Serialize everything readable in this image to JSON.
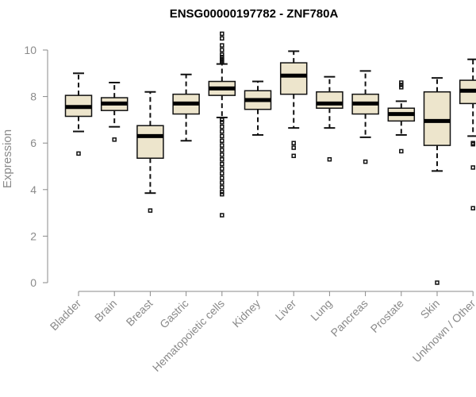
{
  "chart_data": {
    "type": "box",
    "title": "ENSG00000197782 - ZNF780A",
    "xlabel": "",
    "ylabel": "Expression",
    "ylim": [
      0,
      10
    ],
    "yticks": [
      0,
      2,
      4,
      6,
      8,
      10
    ],
    "grid": false,
    "categories": [
      "Bladder",
      "Brain",
      "Breast",
      "Gastric",
      "Hematopoietic cells",
      "Kidney",
      "Liver",
      "Lung",
      "Pancreas",
      "Prostate",
      "Skin",
      "Unknown / Other"
    ],
    "boxes": [
      {
        "name": "Bladder",
        "whislo": 6.5,
        "q1": 7.15,
        "med": 7.55,
        "q3": 8.05,
        "whishi": 9.0,
        "fliers": [
          5.55
        ]
      },
      {
        "name": "Brain",
        "whislo": 6.7,
        "q1": 7.4,
        "med": 7.7,
        "q3": 7.95,
        "whishi": 8.6,
        "fliers": [
          6.15
        ]
      },
      {
        "name": "Breast",
        "whislo": 3.85,
        "q1": 5.35,
        "med": 6.3,
        "q3": 6.75,
        "whishi": 8.2,
        "fliers": [
          3.1
        ]
      },
      {
        "name": "Gastric",
        "whislo": 6.1,
        "q1": 7.25,
        "med": 7.7,
        "q3": 8.1,
        "whishi": 8.95,
        "fliers": []
      },
      {
        "name": "Hematopoietic cells",
        "whislo": 7.1,
        "q1": 8.05,
        "med": 8.35,
        "q3": 8.65,
        "whishi": 9.4,
        "fliers": [
          10.7,
          10.5,
          10.2,
          10.0,
          9.8,
          9.7,
          9.6,
          9.55,
          9.5,
          7.0,
          6.9,
          6.7,
          6.5,
          6.3,
          6.1,
          5.9,
          5.7,
          5.5,
          5.3,
          5.1,
          4.9,
          4.7,
          4.5,
          4.3,
          4.1,
          3.9,
          3.8,
          2.9
        ]
      },
      {
        "name": "Kidney",
        "whislo": 6.35,
        "q1": 7.45,
        "med": 7.85,
        "q3": 8.25,
        "whishi": 8.65,
        "fliers": []
      },
      {
        "name": "Liver",
        "whislo": 6.65,
        "q1": 8.1,
        "med": 8.9,
        "q3": 9.45,
        "whishi": 9.95,
        "fliers": [
          6.0,
          5.8,
          5.45
        ]
      },
      {
        "name": "Lung",
        "whislo": 6.65,
        "q1": 7.5,
        "med": 7.7,
        "q3": 8.2,
        "whishi": 8.85,
        "fliers": [
          5.3
        ]
      },
      {
        "name": "Pancreas",
        "whislo": 6.25,
        "q1": 7.25,
        "med": 7.7,
        "q3": 8.1,
        "whishi": 9.1,
        "fliers": [
          5.2
        ]
      },
      {
        "name": "Prostate",
        "whislo": 6.35,
        "q1": 6.95,
        "med": 7.25,
        "q3": 7.5,
        "whishi": 7.8,
        "fliers": [
          8.6,
          8.5,
          8.4,
          5.65
        ]
      },
      {
        "name": "Skin",
        "whislo": 4.8,
        "q1": 5.9,
        "med": 6.95,
        "q3": 8.2,
        "whishi": 8.8,
        "fliers": [
          0.0
        ]
      },
      {
        "name": "Unknown / Other",
        "whislo": 6.3,
        "q1": 7.7,
        "med": 8.25,
        "q3": 8.7,
        "whishi": 9.6,
        "fliers": [
          6.0,
          5.95,
          4.95,
          3.2
        ]
      }
    ]
  }
}
